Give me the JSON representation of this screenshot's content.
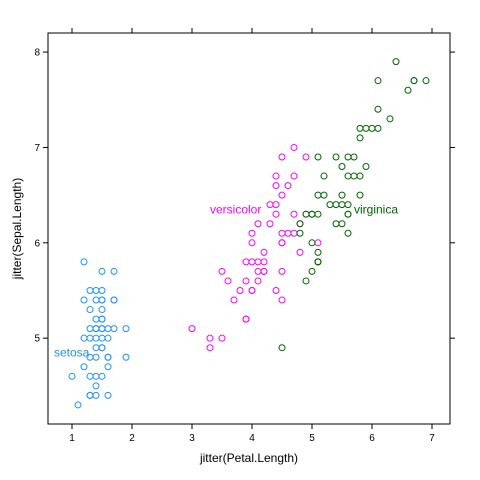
{
  "chart_data": {
    "type": "scatter",
    "xlabel": "jitter(Petal.Length)",
    "ylabel": "jitter(Sepal.Length)",
    "xlim": [
      0.6,
      7.3
    ],
    "ylim": [
      4.1,
      8.2
    ],
    "xticks": [
      "1",
      "2",
      "3",
      "4",
      "5",
      "6",
      "7"
    ],
    "yticks": [
      "5",
      "6",
      "7",
      "8"
    ],
    "grid": false,
    "series": [
      {
        "name": "setosa",
        "color": "#1E90FF",
        "label_at": [
          0.7,
          4.85
        ],
        "points": [
          [
            1.2,
            5.8
          ],
          [
            1.5,
            5.7
          ],
          [
            1.7,
            5.7
          ],
          [
            1.3,
            5.5
          ],
          [
            1.4,
            5.5
          ],
          [
            1.5,
            5.5
          ],
          [
            1.2,
            5.4
          ],
          [
            1.4,
            5.4
          ],
          [
            1.5,
            5.4
          ],
          [
            1.5,
            5.4
          ],
          [
            1.7,
            5.4
          ],
          [
            1.7,
            5.4
          ],
          [
            1.3,
            5.3
          ],
          [
            1.5,
            5.3
          ],
          [
            1.4,
            5.2
          ],
          [
            1.5,
            5.2
          ],
          [
            1.5,
            5.2
          ],
          [
            1.4,
            5.1
          ],
          [
            1.5,
            5.1
          ],
          [
            1.5,
            5.1
          ],
          [
            1.3,
            5.1
          ],
          [
            1.4,
            5.1
          ],
          [
            1.6,
            5.1
          ],
          [
            1.7,
            5.1
          ],
          [
            1.9,
            5.1
          ],
          [
            1.3,
            5.0
          ],
          [
            1.5,
            5.0
          ],
          [
            1.6,
            5.0
          ],
          [
            1.4,
            5.0
          ],
          [
            1.2,
            5.0
          ],
          [
            1.4,
            4.9
          ],
          [
            1.5,
            4.9
          ],
          [
            1.5,
            4.9
          ],
          [
            1.3,
            4.8
          ],
          [
            1.4,
            4.8
          ],
          [
            1.6,
            4.8
          ],
          [
            1.6,
            4.8
          ],
          [
            1.9,
            4.8
          ],
          [
            1.2,
            4.7
          ],
          [
            1.6,
            4.7
          ],
          [
            1.5,
            4.6
          ],
          [
            1.4,
            4.6
          ],
          [
            1.3,
            4.6
          ],
          [
            1.0,
            4.6
          ],
          [
            1.4,
            4.5
          ],
          [
            1.3,
            4.4
          ],
          [
            1.4,
            4.4
          ],
          [
            1.3,
            4.4
          ],
          [
            1.1,
            4.3
          ],
          [
            1.6,
            4.4
          ]
        ]
      },
      {
        "name": "versicolor",
        "color": "#FF00FF",
        "label_at": [
          3.3,
          6.35
        ],
        "points": [
          [
            4.7,
            7.0
          ],
          [
            4.5,
            6.9
          ],
          [
            4.9,
            6.9
          ],
          [
            4.7,
            6.7
          ],
          [
            4.4,
            6.7
          ],
          [
            4.4,
            6.6
          ],
          [
            4.6,
            6.6
          ],
          [
            4.5,
            6.5
          ],
          [
            4.4,
            6.4
          ],
          [
            4.3,
            6.4
          ],
          [
            4.7,
            6.3
          ],
          [
            4.9,
            6.3
          ],
          [
            4.4,
            6.3
          ],
          [
            4.8,
            6.2
          ],
          [
            4.3,
            6.2
          ],
          [
            4.1,
            6.2
          ],
          [
            4.5,
            6.1
          ],
          [
            4.7,
            6.1
          ],
          [
            4.0,
            6.1
          ],
          [
            4.6,
            6.1
          ],
          [
            4.5,
            6.0
          ],
          [
            5.1,
            6.0
          ],
          [
            4.0,
            6.0
          ],
          [
            4.5,
            6.0
          ],
          [
            4.2,
            5.9
          ],
          [
            4.8,
            5.9
          ],
          [
            4.2,
            5.8
          ],
          [
            3.9,
            5.8
          ],
          [
            4.1,
            5.8
          ],
          [
            4.0,
            5.8
          ],
          [
            4.5,
            5.7
          ],
          [
            4.2,
            5.7
          ],
          [
            4.1,
            5.7
          ],
          [
            4.2,
            5.7
          ],
          [
            3.5,
            5.7
          ],
          [
            3.9,
            5.6
          ],
          [
            4.1,
            5.6
          ],
          [
            3.6,
            5.6
          ],
          [
            3.8,
            5.5
          ],
          [
            4.4,
            5.5
          ],
          [
            4.0,
            5.5
          ],
          [
            4.0,
            5.5
          ],
          [
            3.7,
            5.4
          ],
          [
            3.9,
            5.2
          ],
          [
            4.5,
            5.4
          ],
          [
            3.5,
            5.0
          ],
          [
            3.3,
            5.0
          ],
          [
            3.3,
            4.9
          ],
          [
            3.0,
            5.1
          ],
          [
            3.9,
            5.2
          ]
        ]
      },
      {
        "name": "virginica",
        "color": "#006400",
        "label_at": [
          5.7,
          6.35
        ],
        "points": [
          [
            6.4,
            7.9
          ],
          [
            6.7,
            7.7
          ],
          [
            6.1,
            7.7
          ],
          [
            6.7,
            7.7
          ],
          [
            6.9,
            7.7
          ],
          [
            6.6,
            7.6
          ],
          [
            6.1,
            7.4
          ],
          [
            6.3,
            7.3
          ],
          [
            5.9,
            7.2
          ],
          [
            6.0,
            7.2
          ],
          [
            5.8,
            7.2
          ],
          [
            6.1,
            7.2
          ],
          [
            5.8,
            7.1
          ],
          [
            5.6,
            6.9
          ],
          [
            5.1,
            6.9
          ],
          [
            5.7,
            6.9
          ],
          [
            5.4,
            6.9
          ],
          [
            5.5,
            6.8
          ],
          [
            5.9,
            6.8
          ],
          [
            5.6,
            6.7
          ],
          [
            5.7,
            6.7
          ],
          [
            5.2,
            6.7
          ],
          [
            5.8,
            6.7
          ],
          [
            5.5,
            6.5
          ],
          [
            5.2,
            6.5
          ],
          [
            5.1,
            6.5
          ],
          [
            5.8,
            6.5
          ],
          [
            5.4,
            6.4
          ],
          [
            5.3,
            6.4
          ],
          [
            5.6,
            6.4
          ],
          [
            5.5,
            6.4
          ],
          [
            5.6,
            6.3
          ],
          [
            5.1,
            6.3
          ],
          [
            4.9,
            6.3
          ],
          [
            5.0,
            6.3
          ],
          [
            5.0,
            6.3
          ],
          [
            5.6,
            6.3
          ],
          [
            5.5,
            6.2
          ],
          [
            4.8,
            6.2
          ],
          [
            5.4,
            6.2
          ],
          [
            4.8,
            6.1
          ],
          [
            5.6,
            6.1
          ],
          [
            5.0,
            6.0
          ],
          [
            5.1,
            5.9
          ],
          [
            5.1,
            5.8
          ],
          [
            5.1,
            5.8
          ],
          [
            5.0,
            5.7
          ],
          [
            5.1,
            5.8
          ],
          [
            4.9,
            5.6
          ],
          [
            4.5,
            4.9
          ]
        ]
      }
    ]
  }
}
